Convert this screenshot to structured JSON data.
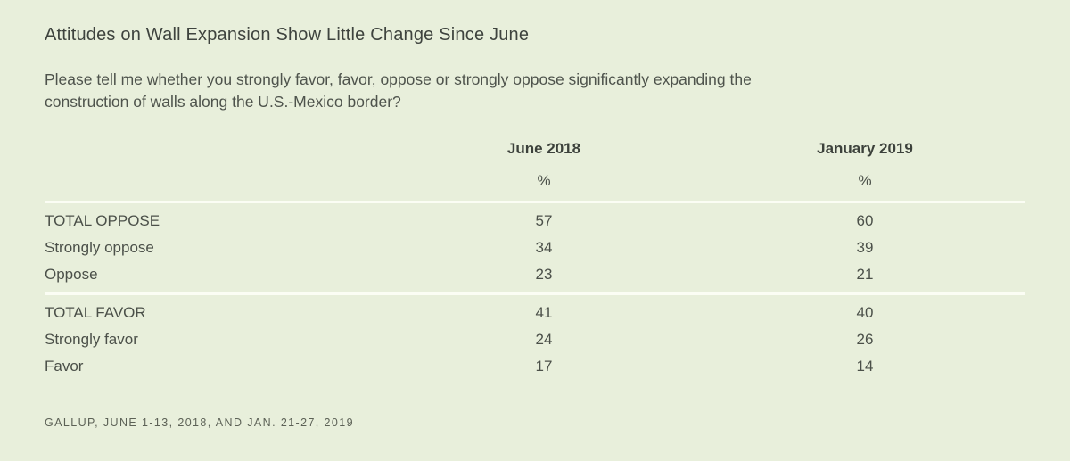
{
  "colors": {
    "background": "#e8efdb",
    "divider": "#fbfdf4",
    "title_text": "#3e433e",
    "body_text": "#4b5049",
    "source_text": "#5c6156"
  },
  "header": {
    "title": "Attitudes on Wall Expansion Show Little Change Since June",
    "question": "Please tell me whether you strongly favor, favor, oppose or strongly oppose significantly expanding the construction of walls along the U.S.-Mexico border?"
  },
  "table": {
    "columns": [
      "June 2018",
      "January 2019"
    ],
    "unit": "%",
    "sections": [
      {
        "rows": [
          {
            "label": "TOTAL OPPOSE",
            "values": [
              "57",
              "60"
            ]
          },
          {
            "label": "Strongly oppose",
            "values": [
              "34",
              "39"
            ]
          },
          {
            "label": "Oppose",
            "values": [
              "23",
              "21"
            ]
          }
        ]
      },
      {
        "rows": [
          {
            "label": "TOTAL FAVOR",
            "values": [
              "41",
              "40"
            ]
          },
          {
            "label": "Strongly favor",
            "values": [
              "24",
              "26"
            ]
          },
          {
            "label": "Favor",
            "values": [
              "17",
              "14"
            ]
          }
        ]
      }
    ]
  },
  "footer": {
    "source": "GALLUP, JUNE 1-13, 2018, AND JAN. 21-27, 2019"
  },
  "chart_data": {
    "type": "table",
    "title": "Attitudes on Wall Expansion Show Little Change Since June",
    "subtitle": "Please tell me whether you strongly favor, favor, oppose or strongly oppose significantly expanding the construction of walls along the U.S.-Mexico border?",
    "unit": "%",
    "categories": [
      "TOTAL OPPOSE",
      "Strongly oppose",
      "Oppose",
      "TOTAL FAVOR",
      "Strongly favor",
      "Favor"
    ],
    "series": [
      {
        "name": "June 2018",
        "values": [
          57,
          34,
          23,
          41,
          24,
          17
        ]
      },
      {
        "name": "January 2019",
        "values": [
          60,
          39,
          21,
          40,
          26,
          14
        ]
      }
    ],
    "source": "GALLUP, JUNE 1-13, 2018, AND JAN. 21-27, 2019"
  }
}
